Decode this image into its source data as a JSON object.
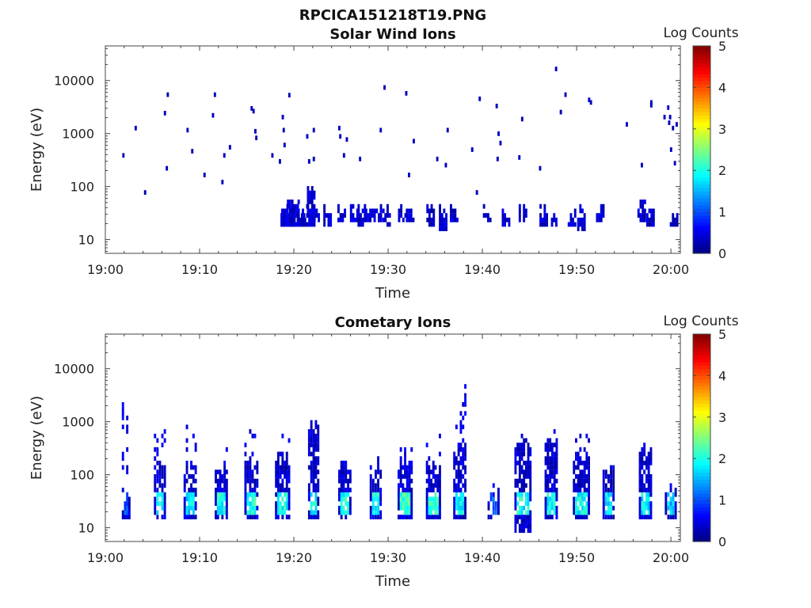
{
  "figure": {
    "title": "RPCICA151218T19.PNG"
  },
  "chart_data": [
    {
      "type": "heatmap",
      "title": "Solar Wind Ions",
      "xlabel": "Time",
      "ylabel": "Energy (eV)",
      "x_range": [
        "19:00",
        "20:01"
      ],
      "x_ticks": [
        "19:00",
        "19:10",
        "19:20",
        "19:30",
        "19:40",
        "19:50",
        "20:00"
      ],
      "y_scale": "log",
      "y_range": [
        5.5,
        45000
      ],
      "y_ticks": [
        "10",
        "100",
        "1000",
        "10000"
      ],
      "colorbar": {
        "label": "Log Counts",
        "range": [
          0,
          5
        ],
        "ticks": [
          "0",
          "1",
          "2",
          "3",
          "4",
          "5"
        ],
        "colormap": "jet"
      },
      "bursts": [
        {
          "t": 19.03,
          "e": [
            17,
            34
          ],
          "v": 0.2
        },
        {
          "t": 19.1,
          "e": [
            17,
            40
          ],
          "v": 0.25
        },
        {
          "t": 19.27,
          "e": [
            17,
            45
          ],
          "v": 0.3
        },
        {
          "t": 19.43,
          "e": [
            17,
            45
          ],
          "v": 0.25
        },
        {
          "t": 19.71,
          "e": [
            17,
            55
          ],
          "v": 0.25
        },
        {
          "t": 20.17,
          "e": [
            17,
            60
          ],
          "v": 0.3
        },
        {
          "t": 20.35,
          "e": [
            20,
            40
          ],
          "v": 0.25
        },
        {
          "t": 20.75,
          "e": [
            17,
            45
          ],
          "v": 0.3
        },
        {
          "t": 21.3,
          "e": [
            17,
            40
          ],
          "v": 0.25
        },
        {
          "t": 21.83,
          "e": [
            17,
            100
          ],
          "v": 0.3
        },
        {
          "t": 22.3,
          "e": [
            20,
            40
          ],
          "v": 0.2
        },
        {
          "t": 23.57,
          "e": [
            17,
            45
          ],
          "v": 0.25
        },
        {
          "t": 25.07,
          "e": [
            20,
            45
          ],
          "v": 0.25
        },
        {
          "t": 26.4,
          "e": [
            20,
            50
          ],
          "v": 0.25
        },
        {
          "t": 27.2,
          "e": [
            17,
            45
          ],
          "v": 0.25
        },
        {
          "t": 28.0,
          "e": [
            20,
            40
          ],
          "v": 0.2
        },
        {
          "t": 28.9,
          "e": [
            20,
            45
          ],
          "v": 0.2
        },
        {
          "t": 29.83,
          "e": [
            17,
            45
          ],
          "v": 0.25
        },
        {
          "t": 31.5,
          "e": [
            20,
            40
          ],
          "v": 0.3
        },
        {
          "t": 32.33,
          "e": [
            20,
            40
          ],
          "v": 0.25
        },
        {
          "t": 34.5,
          "e": [
            17,
            45
          ],
          "v": 0.25
        },
        {
          "t": 35.83,
          "e": [
            12,
            45
          ],
          "v": 0.25
        },
        {
          "t": 37.0,
          "e": [
            20,
            40
          ],
          "v": 0.25
        },
        {
          "t": 40.5,
          "e": [
            20,
            40
          ],
          "v": 0.25
        },
        {
          "t": 42.5,
          "e": [
            17,
            40
          ],
          "v": 0.25
        },
        {
          "t": 44.3,
          "e": [
            20,
            50
          ],
          "v": 0.25
        },
        {
          "t": 46.5,
          "e": [
            17,
            40
          ],
          "v": 0.25
        },
        {
          "t": 47.5,
          "e": [
            17,
            30
          ],
          "v": 0.2
        },
        {
          "t": 49.5,
          "e": [
            17,
            45
          ],
          "v": 0.25
        },
        {
          "t": 50.5,
          "e": [
            12,
            45
          ],
          "v": 0.25
        },
        {
          "t": 52.5,
          "e": [
            20,
            50
          ],
          "v": 0.25
        },
        {
          "t": 56.9,
          "e": [
            20,
            60
          ],
          "v": 0.25
        },
        {
          "t": 57.83,
          "e": [
            17,
            45
          ],
          "v": 0.25
        },
        {
          "t": 60.33,
          "e": [
            17,
            30
          ],
          "v": 0.25
        }
      ],
      "points": [
        {
          "t": 1.8,
          "e": 350
        },
        {
          "t": 3.1,
          "e": 1150
        },
        {
          "t": 4.1,
          "e": 70
        },
        {
          "t": 6.2,
          "e": 2200
        },
        {
          "t": 6.5,
          "e": 4900
        },
        {
          "t": 6.4,
          "e": 200
        },
        {
          "t": 8.6,
          "e": 1050
        },
        {
          "t": 9.1,
          "e": 420
        },
        {
          "t": 10.4,
          "e": 150
        },
        {
          "t": 11.3,
          "e": 2000
        },
        {
          "t": 11.5,
          "e": 4900
        },
        {
          "t": 12.3,
          "e": 110
        },
        {
          "t": 12.5,
          "e": 350
        },
        {
          "t": 13.1,
          "e": 500
        },
        {
          "t": 15.4,
          "e": 2700
        },
        {
          "t": 15.6,
          "e": 2400
        },
        {
          "t": 15.8,
          "e": 1000
        },
        {
          "t": 15.9,
          "e": 750
        },
        {
          "t": 17.6,
          "e": 350
        },
        {
          "t": 18.4,
          "e": 270
        },
        {
          "t": 18.7,
          "e": 1850
        },
        {
          "t": 18.8,
          "e": 1050
        },
        {
          "t": 18.9,
          "e": 550
        },
        {
          "t": 19.4,
          "e": 4800
        },
        {
          "t": 21.3,
          "e": 800
        },
        {
          "t": 21.5,
          "e": 270
        },
        {
          "t": 22.0,
          "e": 1050
        },
        {
          "t": 22.0,
          "e": 300
        },
        {
          "t": 24.7,
          "e": 1150
        },
        {
          "t": 24.8,
          "e": 800
        },
        {
          "t": 25.2,
          "e": 350
        },
        {
          "t": 25.5,
          "e": 700
        },
        {
          "t": 26.9,
          "e": 300
        },
        {
          "t": 29.1,
          "e": 1050
        },
        {
          "t": 29.5,
          "e": 6700
        },
        {
          "t": 31.8,
          "e": 5200
        },
        {
          "t": 32.1,
          "e": 150
        },
        {
          "t": 32.6,
          "e": 650
        },
        {
          "t": 35.1,
          "e": 300
        },
        {
          "t": 36.0,
          "e": 230
        },
        {
          "t": 36.2,
          "e": 1050
        },
        {
          "t": 38.8,
          "e": 450
        },
        {
          "t": 39.3,
          "e": 70
        },
        {
          "t": 39.6,
          "e": 4100
        },
        {
          "t": 41.4,
          "e": 3000
        },
        {
          "t": 41.6,
          "e": 900
        },
        {
          "t": 41.8,
          "e": 600
        },
        {
          "t": 41.5,
          "e": 300
        },
        {
          "t": 43.8,
          "e": 320
        },
        {
          "t": 44.1,
          "e": 1700
        },
        {
          "t": 46.0,
          "e": 200
        },
        {
          "t": 47.7,
          "e": 15000
        },
        {
          "t": 48.2,
          "e": 2300
        },
        {
          "t": 48.7,
          "e": 4900
        },
        {
          "t": 51.2,
          "e": 3900
        },
        {
          "t": 51.4,
          "e": 3500
        },
        {
          "t": 55.2,
          "e": 1350
        },
        {
          "t": 56.8,
          "e": 230
        },
        {
          "t": 57.8,
          "e": 3500
        },
        {
          "t": 57.8,
          "e": 3100
        },
        {
          "t": 59.2,
          "e": 1850
        },
        {
          "t": 59.6,
          "e": 2800
        },
        {
          "t": 59.8,
          "e": 1850
        },
        {
          "t": 59.7,
          "e": 1450
        },
        {
          "t": 60.1,
          "e": 1150
        },
        {
          "t": 60.5,
          "e": 1350
        },
        {
          "t": 59.9,
          "e": 450
        },
        {
          "t": 60.3,
          "e": 250
        }
      ]
    },
    {
      "type": "heatmap",
      "title": "Cometary Ions",
      "xlabel": "Time",
      "ylabel": "Energy (eV)",
      "x_range": [
        "19:00",
        "20:01"
      ],
      "x_ticks": [
        "19:00",
        "19:10",
        "19:20",
        "19:30",
        "19:40",
        "19:50",
        "20:00"
      ],
      "y_scale": "log",
      "y_range": [
        5.5,
        45000
      ],
      "y_ticks": [
        "10",
        "100",
        "1000",
        "10000"
      ],
      "colorbar": {
        "label": "Log Counts",
        "range": [
          0,
          5
        ],
        "ticks": [
          "0",
          "1",
          "2",
          "3",
          "4",
          "5"
        ],
        "colormap": "jet"
      },
      "bursts": [
        {
          "t": 2.2,
          "w": 0.9,
          "e": [
            12,
            45
          ],
          "v": 1.1,
          "max": 2400
        },
        {
          "t": 5.8,
          "w": 1.3,
          "e": [
            12,
            220
          ],
          "v": 2.1,
          "max": 700
        },
        {
          "t": 9.0,
          "w": 1.4,
          "e": [
            12,
            160
          ],
          "v": 1.9,
          "max": 750
        },
        {
          "t": 12.3,
          "w": 1.4,
          "e": [
            12,
            180
          ],
          "v": 2.1,
          "max": 420
        },
        {
          "t": 15.5,
          "w": 1.5,
          "e": [
            12,
            200
          ],
          "v": 2.2,
          "max": 650
        },
        {
          "t": 18.8,
          "w": 1.6,
          "e": [
            12,
            300
          ],
          "v": 2.1,
          "max": 1200
        },
        {
          "t": 22.1,
          "w": 1.2,
          "e": [
            12,
            1000
          ],
          "v": 2.0,
          "max": 1000
        },
        {
          "t": 25.4,
          "w": 1.4,
          "e": [
            12,
            180
          ],
          "v": 2.1,
          "max": 300
        },
        {
          "t": 28.7,
          "w": 1.3,
          "e": [
            12,
            150
          ],
          "v": 2.1,
          "max": 220
        },
        {
          "t": 31.8,
          "w": 1.6,
          "e": [
            12,
            180
          ],
          "v": 2.3,
          "max": 300
        },
        {
          "t": 34.8,
          "w": 1.6,
          "e": [
            12,
            220
          ],
          "v": 2.2,
          "max": 600
        },
        {
          "t": 37.6,
          "w": 1.4,
          "e": [
            12,
            400
          ],
          "v": 2.0,
          "max": 5200
        },
        {
          "t": 41.2,
          "w": 1.3,
          "e": [
            12,
            45
          ],
          "v": 1.2,
          "max": 60
        },
        {
          "t": 44.3,
          "w": 1.8,
          "e": [
            6,
            500
          ],
          "v": 2.1,
          "max": 500
        },
        {
          "t": 47.3,
          "w": 1.4,
          "e": [
            12,
            600
          ],
          "v": 2.0,
          "max": 700
        },
        {
          "t": 50.5,
          "w": 1.8,
          "e": [
            12,
            280
          ],
          "v": 2.1,
          "max": 550
        },
        {
          "t": 53.4,
          "w": 1.3,
          "e": [
            12,
            160
          ],
          "v": 1.9,
          "max": 160
        },
        {
          "t": 57.3,
          "w": 1.4,
          "e": [
            12,
            400
          ],
          "v": 2.0,
          "max": 400
        },
        {
          "t": 60.0,
          "w": 1.3,
          "e": [
            12,
            60
          ],
          "v": 1.7,
          "max": 60
        }
      ]
    }
  ]
}
